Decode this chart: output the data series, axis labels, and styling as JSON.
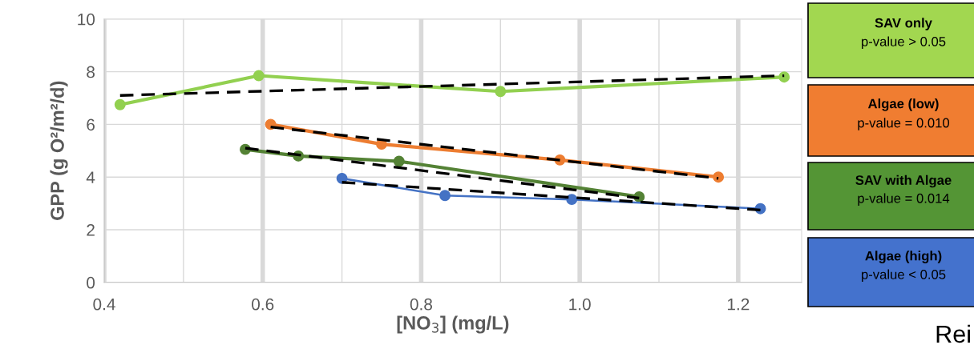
{
  "chart_data": {
    "type": "line",
    "xlabel": "[NO$_{3}$] (mg/L)",
    "ylabel": "GPP (g O²/m²/d)",
    "xlim": [
      0.4,
      1.28
    ],
    "ylim": [
      0,
      10
    ],
    "xticks": [
      {
        "value": 0.4,
        "label": "0.4"
      },
      {
        "value": 0.5,
        "label": null
      },
      {
        "value": 0.6,
        "label": "0.6"
      },
      {
        "value": 0.7,
        "label": null
      },
      {
        "value": 0.8,
        "label": "0.8"
      },
      {
        "value": 0.9,
        "label": null
      },
      {
        "value": 1.0,
        "label": "1.0"
      },
      {
        "value": 1.1,
        "label": null
      },
      {
        "value": 1.2,
        "label": "1.2"
      }
    ],
    "yticks": [
      0,
      2,
      4,
      6,
      8,
      10
    ],
    "grid": true,
    "legend": "right",
    "marker": "circle",
    "line_style": "solid",
    "series": [
      {
        "name": "SAV only",
        "color": "#92d050",
        "x": [
          0.42,
          0.595,
          0.9,
          1.258
        ],
        "values": [
          6.75,
          7.85,
          7.25,
          7.8
        ]
      },
      {
        "name": "Algae (low)",
        "color": "#ed7d31",
        "x": [
          0.61,
          0.75,
          0.975,
          1.175
        ],
        "values": [
          6.0,
          5.25,
          4.65,
          4.0
        ]
      },
      {
        "name": "SAV with Algae",
        "color": "#548235",
        "x": [
          0.578,
          0.645,
          0.772,
          1.075
        ],
        "values": [
          5.05,
          4.8,
          4.6,
          3.25
        ]
      },
      {
        "name": "Algae (high)",
        "color": "#4472c4",
        "x": [
          0.7,
          0.83,
          0.99,
          1.228
        ],
        "values": [
          3.95,
          3.3,
          3.15,
          2.8
        ]
      },
      {
        "type": "line",
        "color": "#000000",
        "line_style": "dashed",
        "marker": "none",
        "x": [
          0.42,
          1.258
        ],
        "values": [
          7.1,
          7.85
        ]
      },
      {
        "type": "line",
        "color": "#000000",
        "line_style": "dashed",
        "marker": "none",
        "x": [
          0.61,
          1.175
        ],
        "values": [
          5.9,
          3.95
        ]
      },
      {
        "type": "line",
        "color": "#000000",
        "line_style": "dashed",
        "marker": "none",
        "x": [
          0.578,
          1.075
        ],
        "values": [
          5.1,
          3.2
        ]
      },
      {
        "type": "line",
        "color": "#000000",
        "line_style": "dashed",
        "marker": "none",
        "x": [
          0.7,
          1.228
        ],
        "values": [
          3.8,
          2.75
        ]
      }
    ],
    "annotations": [
      "p-value > 0.05",
      "p-value = 0.010",
      "p-value = 0.014",
      "p-value < 0.05",
      "Rei"
    ]
  }
}
